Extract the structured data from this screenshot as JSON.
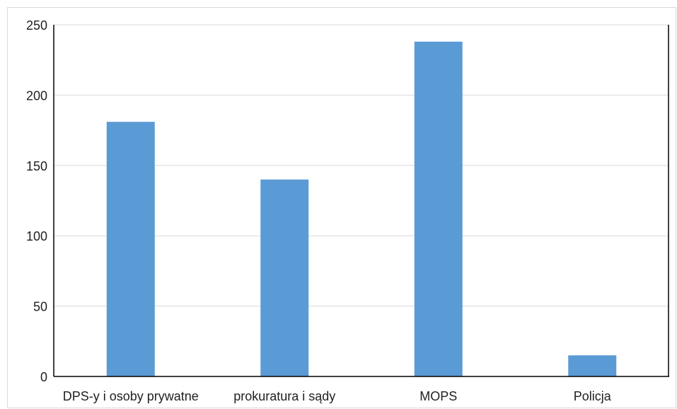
{
  "chart_data": {
    "type": "bar",
    "title": "",
    "xlabel": "",
    "ylabel": "",
    "categories": [
      "DPS-y i osoby prywatne",
      "prokuratura i sądy",
      "MOPS",
      "Policja"
    ],
    "values": [
      181,
      140,
      238,
      15
    ],
    "ylim": [
      0,
      250
    ],
    "yticks": [
      0,
      50,
      100,
      150,
      200,
      250
    ],
    "grid": true,
    "legend": "none",
    "bar_color": "#5b9bd5",
    "grid_color": "#d9d9d9",
    "axis_color": "#000000"
  }
}
